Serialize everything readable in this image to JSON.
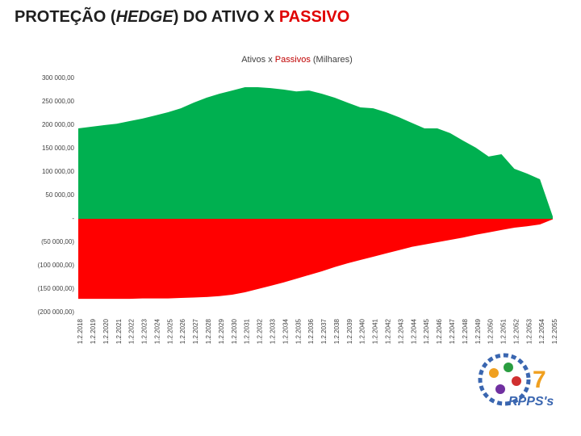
{
  "slide_title": [
    "PROTEÇÃO (",
    "HEDGE",
    ") DO ATIVO X ",
    "PASSIVO"
  ],
  "logo": {
    "badge": "7",
    "text": "RPPS's"
  },
  "chart_data": {
    "type": "area",
    "title_joiner": "x",
    "title_unit": "(Milhares)",
    "categories": [
      "1.2.2018",
      "1.2.2019",
      "1.2.2020",
      "1.2.2021",
      "1.2.2022",
      "1.2.2023",
      "1.2.2024",
      "1.2.2025",
      "1.2.2026",
      "1.2.2027",
      "1.2.2028",
      "1.2.2029",
      "1.2.2030",
      "1.2.2031",
      "1.2.2032",
      "1.2.2033",
      "1.2.2034",
      "1.2.2035",
      "1.2.2036",
      "1.2.2037",
      "1.2.2038",
      "1.2.2039",
      "1.2.2040",
      "1.2.2041",
      "1.2.2042",
      "1.2.2043",
      "1.2.2044",
      "1.2.2045",
      "1.2.2046",
      "1.2.2047",
      "1.2.2048",
      "1.2.2049",
      "1.2.2050",
      "1.2.2051",
      "1.2.2052",
      "1.2.2053",
      "1.2.2054",
      "1.2.2055"
    ],
    "series": [
      {
        "name": "Ativos",
        "color": "#00b050",
        "values": [
          193000,
          196500,
          200000,
          203000,
          208600,
          214000,
          220700,
          227500,
          236000,
          248000,
          258600,
          267000,
          274000,
          281000,
          281000,
          279000,
          276000,
          272000,
          274000,
          267000,
          258600,
          248000,
          238000,
          236000,
          227500,
          217000,
          205000,
          193000,
          193000,
          183000,
          167000,
          152000,
          133000,
          138000,
          107000,
          96500,
          84500,
          5000
        ]
      },
      {
        "name": "Passivos",
        "color": "#ff0000",
        "values": [
          -171000,
          -171000,
          -171000,
          -171000,
          -171000,
          -170000,
          -170000,
          -170000,
          -169000,
          -168000,
          -167000,
          -165000,
          -162000,
          -157000,
          -150000,
          -143000,
          -136000,
          -128000,
          -120000,
          -112000,
          -103000,
          -95000,
          -88000,
          -81000,
          -74000,
          -67000,
          -60000,
          -55000,
          -50000,
          -45000,
          -40000,
          -34000,
          -29000,
          -24000,
          -19000,
          -16000,
          -12000,
          -1000
        ]
      }
    ],
    "ylim": [
      -200000,
      300000
    ],
    "yticks": [
      {
        "value": -200000,
        "label": "(200 000,00)"
      },
      {
        "value": -150000,
        "label": "(150 000,00)"
      },
      {
        "value": -100000,
        "label": "(100 000,00)"
      },
      {
        "value": -50000,
        "label": "(50 000,00)"
      },
      {
        "value": 0,
        "label": "-"
      },
      {
        "value": 50000,
        "label": "50 000,00"
      },
      {
        "value": 100000,
        "label": "100 000,00"
      },
      {
        "value": 150000,
        "label": "150 000,00"
      },
      {
        "value": 200000,
        "label": "200 000,00"
      },
      {
        "value": 250000,
        "label": "250 000,00"
      },
      {
        "value": 300000,
        "label": "300 000,00"
      }
    ],
    "grid": false
  }
}
